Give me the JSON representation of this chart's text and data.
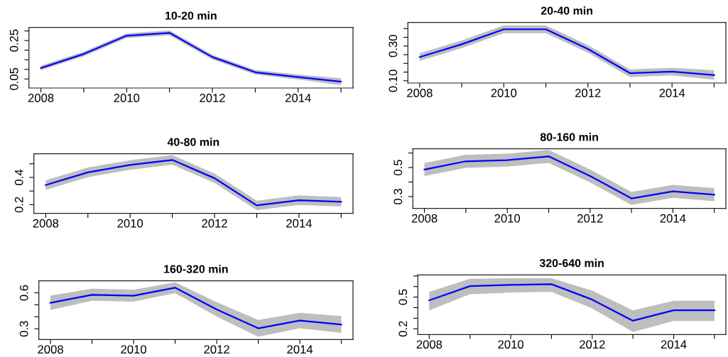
{
  "chart_data": [
    {
      "type": "line",
      "title": "10-20 min",
      "x": [
        2008,
        2009,
        2010,
        2011,
        2012,
        2013,
        2014,
        2015
      ],
      "xlim": [
        2007.72,
        2015.28
      ],
      "xticks": [
        2008,
        {
          "value": 2009,
          "label": null
        },
        2010,
        {
          "value": 2011,
          "label": null
        },
        2012,
        {
          "value": 2013,
          "label": null
        },
        2014,
        {
          "value": 2015,
          "label": null
        }
      ],
      "ylim": [
        0.003,
        0.318
      ],
      "yticks": [
        0.05,
        {
          "value": 0.1,
          "label": null
        },
        {
          "value": 0.15,
          "label": null
        },
        {
          "value": 0.2,
          "label": null
        },
        0.25,
        {
          "value": 0.3,
          "label": null
        }
      ],
      "series": [
        {
          "color": "#0000ff",
          "values": [
            0.107,
            0.18,
            0.275,
            0.29,
            0.164,
            0.085,
            0.06,
            0.036
          ],
          "lower": [
            0.095,
            0.168,
            0.263,
            0.277,
            0.152,
            0.073,
            0.047,
            0.018
          ],
          "upper": [
            0.119,
            0.192,
            0.287,
            0.303,
            0.176,
            0.097,
            0.073,
            0.054
          ]
        }
      ]
    },
    {
      "type": "line",
      "title": "20-40 min",
      "x": [
        2008,
        2009,
        2010,
        2011,
        2012,
        2013,
        2014,
        2015
      ],
      "xlim": [
        2007.72,
        2015.28
      ],
      "xticks": [
        2008,
        {
          "value": 2009,
          "label": null
        },
        2010,
        {
          "value": 2011,
          "label": null
        },
        2012,
        {
          "value": 2013,
          "label": null
        },
        2014,
        {
          "value": 2015,
          "label": null
        }
      ],
      "ylim": [
        0.087,
        0.435
      ],
      "yticks": [
        {
          "value": 0.1,
          "label": "0.10"
        },
        {
          "value": 0.15,
          "label": null
        },
        {
          "value": 0.2,
          "label": null
        },
        {
          "value": 0.25,
          "label": null
        },
        {
          "value": 0.3,
          "label": "0.30"
        },
        {
          "value": 0.35,
          "label": null
        },
        {
          "value": 0.4,
          "label": null
        }
      ],
      "series": [
        {
          "color": "#0000ff",
          "values": [
            0.236,
            0.31,
            0.396,
            0.396,
            0.283,
            0.144,
            0.153,
            0.133
          ],
          "lower": [
            0.214,
            0.288,
            0.374,
            0.374,
            0.261,
            0.122,
            0.131,
            0.106
          ],
          "upper": [
            0.258,
            0.332,
            0.418,
            0.418,
            0.305,
            0.166,
            0.175,
            0.16
          ]
        }
      ]
    },
    {
      "type": "line",
      "title": "40-80 min",
      "x": [
        2008,
        2009,
        2010,
        2011,
        2012,
        2013,
        2014,
        2015
      ],
      "xlim": [
        2007.72,
        2015.28
      ],
      "xticks": [
        2008,
        {
          "value": 2009,
          "label": null
        },
        2010,
        {
          "value": 2011,
          "label": null
        },
        2012,
        {
          "value": 2013,
          "label": null
        },
        2014,
        {
          "value": 2015,
          "label": null
        }
      ],
      "ylim": [
        0.136,
        0.573
      ],
      "yticks": [
        0.2,
        {
          "value": 0.3,
          "label": null
        },
        0.4,
        {
          "value": 0.5,
          "label": null
        }
      ],
      "series": [
        {
          "color": "#0000ff",
          "values": [
            0.344,
            0.437,
            0.491,
            0.528,
            0.394,
            0.195,
            0.233,
            0.221
          ],
          "lower": [
            0.309,
            0.402,
            0.456,
            0.493,
            0.359,
            0.16,
            0.198,
            0.186
          ],
          "upper": [
            0.379,
            0.472,
            0.526,
            0.563,
            0.429,
            0.23,
            0.268,
            0.256
          ]
        }
      ]
    },
    {
      "type": "line",
      "title": "80-160 min",
      "x": [
        2008,
        2009,
        2010,
        2011,
        2012,
        2013,
        2014,
        2015
      ],
      "xlim": [
        2007.72,
        2015.28
      ],
      "xticks": [
        2008,
        {
          "value": 2009,
          "label": null
        },
        2010,
        {
          "value": 2011,
          "label": null
        },
        2012,
        {
          "value": 2013,
          "label": null
        },
        2014,
        {
          "value": 2015,
          "label": null
        }
      ],
      "ylim": [
        0.218,
        0.629
      ],
      "yticks": [
        0.3,
        {
          "value": 0.4,
          "label": null
        },
        0.5,
        {
          "value": 0.6,
          "label": null
        }
      ],
      "series": [
        {
          "color": "#0000ff",
          "values": [
            0.486,
            0.543,
            0.551,
            0.577,
            0.442,
            0.287,
            0.336,
            0.313
          ],
          "lower": [
            0.441,
            0.498,
            0.506,
            0.532,
            0.397,
            0.242,
            0.291,
            0.268
          ],
          "upper": [
            0.531,
            0.588,
            0.596,
            0.622,
            0.487,
            0.332,
            0.381,
            0.358
          ]
        }
      ]
    },
    {
      "type": "line",
      "title": "160-320 min",
      "x": [
        2008,
        2009,
        2010,
        2011,
        2012,
        2013,
        2014,
        2015
      ],
      "xlim": [
        2007.72,
        2015.28
      ],
      "xticks": [
        2008,
        {
          "value": 2009,
          "label": null
        },
        2010,
        {
          "value": 2011,
          "label": null
        },
        2012,
        {
          "value": 2013,
          "label": null
        },
        2014,
        {
          "value": 2015,
          "label": null
        }
      ],
      "ylim": [
        0.211,
        0.7
      ],
      "yticks": [
        0.3,
        {
          "value": 0.4,
          "label": null
        },
        {
          "value": 0.5,
          "label": null
        },
        0.6
      ],
      "series": [
        {
          "color": "#0000ff",
          "values": [
            0.517,
            0.584,
            0.576,
            0.643,
            0.462,
            0.304,
            0.369,
            0.336
          ],
          "lower": [
            0.457,
            0.534,
            0.526,
            0.598,
            0.402,
            0.234,
            0.304,
            0.266
          ],
          "upper": [
            0.577,
            0.634,
            0.626,
            0.688,
            0.522,
            0.374,
            0.434,
            0.406
          ]
        }
      ]
    },
    {
      "type": "line",
      "title": "320-640 min",
      "x": [
        2008,
        2009,
        2010,
        2011,
        2012,
        2013,
        2014,
        2015
      ],
      "xlim": [
        2007.72,
        2015.28
      ],
      "xticks": [
        2008,
        {
          "value": 2009,
          "label": null
        },
        2010,
        {
          "value": 2011,
          "label": null
        },
        2012,
        {
          "value": 2013,
          "label": null
        },
        2014,
        {
          "value": 2015,
          "label": null
        }
      ],
      "ylim": [
        0.146,
        0.71
      ],
      "yticks": [
        0.2,
        {
          "value": 0.3,
          "label": null
        },
        {
          "value": 0.4,
          "label": null
        },
        0.5,
        {
          "value": 0.6,
          "label": null
        },
        {
          "value": 0.7,
          "label": null
        }
      ],
      "series": [
        {
          "color": "#0000ff",
          "values": [
            0.469,
            0.604,
            0.615,
            0.622,
            0.476,
            0.276,
            0.375,
            0.375
          ],
          "lower": [
            0.375,
            0.527,
            0.543,
            0.55,
            0.393,
            0.169,
            0.274,
            0.274
          ],
          "upper": [
            0.55,
            0.673,
            0.678,
            0.678,
            0.561,
            0.375,
            0.465,
            0.465
          ]
        }
      ]
    }
  ]
}
